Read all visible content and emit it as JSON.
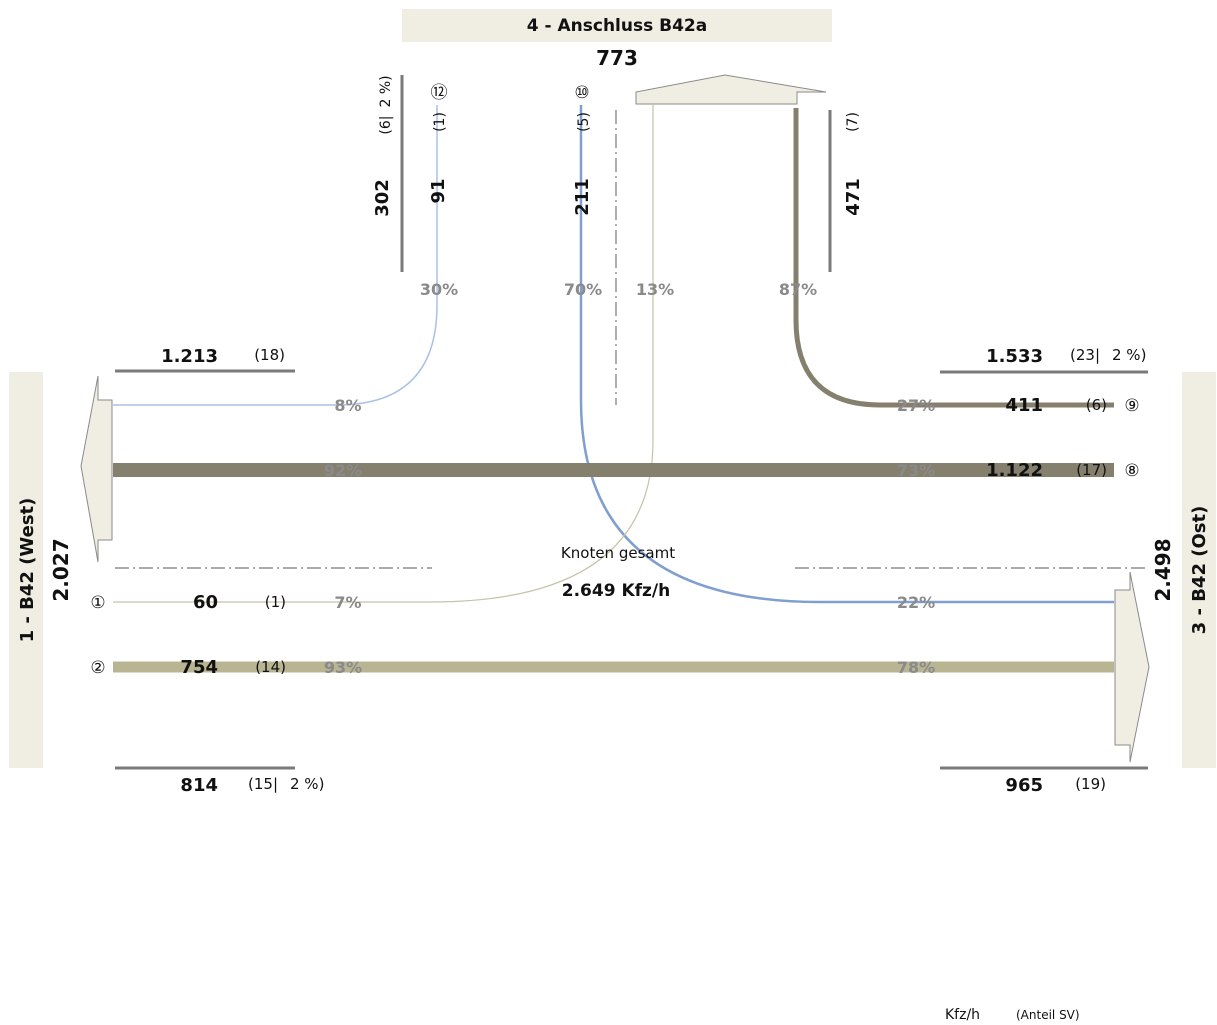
{
  "approaches": {
    "north": {
      "label": "4 - Anschluss B42a",
      "total": "773"
    },
    "west": {
      "label": "1 - B42 (West)",
      "total": "2.027"
    },
    "east": {
      "label": "3 - B42 (Ost)",
      "total": "2.498"
    }
  },
  "north_in": {
    "sum": "302",
    "sv": "(6|",
    "sv_pct": "2 %)",
    "stream12_val": "91",
    "stream12_sv": "(1)",
    "stream10_val": "211",
    "stream10_sv": "(5)"
  },
  "north_out": {
    "val": "471",
    "sv": "(7)"
  },
  "stream_ids": {
    "s1": "①",
    "s2": "②",
    "s8": "⑧",
    "s9": "⑨",
    "s10": "⑩",
    "s12": "⑫"
  },
  "west_out": {
    "val": "1.213",
    "sv": "(18)"
  },
  "west_in": {
    "val": "814",
    "sv": "(15|",
    "sv_pct": "2 %)"
  },
  "east_in": {
    "val": "1.533",
    "sv": "(23|",
    "sv_pct": "2 %)"
  },
  "east_out": {
    "val": "965",
    "sv": "(19)"
  },
  "streams": {
    "s1": {
      "val": "60",
      "sv": "(1)"
    },
    "s2": {
      "val": "754",
      "sv": "(14)"
    },
    "s8": {
      "val": "1.122",
      "sv": "(17)"
    },
    "s9": {
      "val": "411",
      "sv": "(6)"
    }
  },
  "percents": {
    "p30": "30%",
    "p70": "70%",
    "p13": "13%",
    "p87": "87%",
    "p8": "8%",
    "p92": "92%",
    "p7": "7%",
    "p93": "93%",
    "p27": "27%",
    "p73": "73%",
    "p22": "22%",
    "p78": "78%"
  },
  "center": {
    "label": "Knoten gesamt",
    "total": "2.649 Kfz/h"
  },
  "legend": {
    "unit": "Kfz/h",
    "sv": "(Anteil SV)"
  },
  "colors": {
    "dark": "#857f6e",
    "tan": "#b9b492",
    "blue": "#7f9fd0",
    "light_blue": "#a9c1e4",
    "beige_line": "#c8c2a8",
    "box": "#f0ede2",
    "grey_text": "#8a8a8a"
  }
}
